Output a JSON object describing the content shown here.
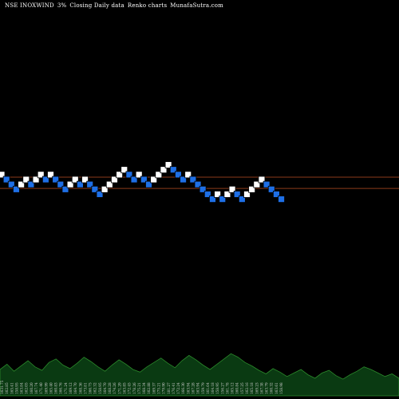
{
  "header": {
    "symbol": "NSE INOXWIND",
    "box_size": "3%",
    "chart_kind": "Closing Daily data",
    "chart_label": "Renko charts",
    "source": "MunafaSutra.com"
  },
  "colors": {
    "background": "#000000",
    "up_brick": "#ffffff",
    "down_brick": "#1e6fe6",
    "brick_outline": "#000000",
    "reference_line": "#8b3a1a",
    "volume_fill": "#0a3a12",
    "volume_stroke": "#2b8a2b",
    "volume_text": "#d0d0d0"
  },
  "chart_data": {
    "type": "renko",
    "title": "NSE INOXWIND 3%",
    "box_size_pct": 3,
    "reference_lines": [
      {
        "level": 0
      },
      {
        "level": -1
      }
    ],
    "bricks": [
      {
        "level": 1,
        "dir": "up"
      },
      {
        "level": 0,
        "dir": "down"
      },
      {
        "level": -1,
        "dir": "down"
      },
      {
        "level": -2,
        "dir": "down"
      },
      {
        "level": -1,
        "dir": "up"
      },
      {
        "level": 0,
        "dir": "up"
      },
      {
        "level": -1,
        "dir": "down"
      },
      {
        "level": 0,
        "dir": "up"
      },
      {
        "level": 1,
        "dir": "up"
      },
      {
        "level": 0,
        "dir": "down"
      },
      {
        "level": 1,
        "dir": "up"
      },
      {
        "level": 0,
        "dir": "down"
      },
      {
        "level": -1,
        "dir": "down"
      },
      {
        "level": -2,
        "dir": "down"
      },
      {
        "level": -1,
        "dir": "up"
      },
      {
        "level": 0,
        "dir": "up"
      },
      {
        "level": -1,
        "dir": "down"
      },
      {
        "level": 0,
        "dir": "up"
      },
      {
        "level": -1,
        "dir": "down"
      },
      {
        "level": -2,
        "dir": "down"
      },
      {
        "level": -3,
        "dir": "down"
      },
      {
        "level": -2,
        "dir": "up"
      },
      {
        "level": -1,
        "dir": "up"
      },
      {
        "level": 0,
        "dir": "up"
      },
      {
        "level": 1,
        "dir": "up"
      },
      {
        "level": 2,
        "dir": "up"
      },
      {
        "level": 1,
        "dir": "down"
      },
      {
        "level": 0,
        "dir": "down"
      },
      {
        "level": 1,
        "dir": "up"
      },
      {
        "level": 0,
        "dir": "down"
      },
      {
        "level": -1,
        "dir": "down"
      },
      {
        "level": 0,
        "dir": "up"
      },
      {
        "level": 1,
        "dir": "up"
      },
      {
        "level": 2,
        "dir": "up"
      },
      {
        "level": 3,
        "dir": "up"
      },
      {
        "level": 2,
        "dir": "down"
      },
      {
        "level": 1,
        "dir": "down"
      },
      {
        "level": 0,
        "dir": "down"
      },
      {
        "level": 1,
        "dir": "up"
      },
      {
        "level": 0,
        "dir": "down"
      },
      {
        "level": -1,
        "dir": "down"
      },
      {
        "level": -2,
        "dir": "down"
      },
      {
        "level": -3,
        "dir": "down"
      },
      {
        "level": -4,
        "dir": "down"
      },
      {
        "level": -3,
        "dir": "up"
      },
      {
        "level": -4,
        "dir": "down"
      },
      {
        "level": -3,
        "dir": "up"
      },
      {
        "level": -2,
        "dir": "up"
      },
      {
        "level": -3,
        "dir": "down"
      },
      {
        "level": -4,
        "dir": "down"
      },
      {
        "level": -3,
        "dir": "up"
      },
      {
        "level": -2,
        "dir": "up"
      },
      {
        "level": -1,
        "dir": "up"
      },
      {
        "level": 0,
        "dir": "up"
      },
      {
        "level": -1,
        "dir": "down"
      },
      {
        "level": -2,
        "dir": "down"
      },
      {
        "level": -3,
        "dir": "down"
      },
      {
        "level": -4,
        "dir": "down"
      }
    ],
    "volume_values": [
      30,
      36,
      28,
      34,
      40,
      33,
      29,
      38,
      42,
      35,
      31,
      37,
      44,
      39,
      33,
      28,
      35,
      41,
      36,
      30,
      27,
      33,
      38,
      43,
      37,
      32,
      40,
      46,
      41,
      35,
      30,
      36,
      42,
      48,
      44,
      38,
      34,
      29,
      25,
      31,
      27,
      22,
      26,
      30,
      24,
      20,
      26,
      29,
      23,
      19,
      24,
      28,
      33,
      30,
      26,
      22,
      25,
      20
    ],
    "volume_labels": [
      "1631.75",
      "162.85",
      "165.41",
      "158.95",
      "163.84",
      "162.05",
      "160.20",
      "167.74",
      "171.40",
      "169.99",
      "165.40",
      "160.83",
      "166.76",
      "171.24",
      "169.12",
      "164.70",
      "168.36",
      "173.81",
      "166.75",
      "162.32",
      "158.95",
      "164.70",
      "168.28",
      "174.26",
      "171.29",
      "163.85",
      "172.45",
      "178.26",
      "175.21",
      "168.34",
      "162.88",
      "169.37",
      "175.21",
      "179.90",
      "181.27",
      "176.41",
      "172.24",
      "166.30",
      "163.94",
      "167.28",
      "163.94",
      "159.79",
      "161.64",
      "164.18",
      "158.95",
      "156.27",
      "161.78",
      "165.12",
      "160.84",
      "157.25",
      "162.16",
      "165.18",
      "169.23",
      "167.38",
      "163.79",
      "160.32",
      "163.61",
      "158.98"
    ]
  }
}
